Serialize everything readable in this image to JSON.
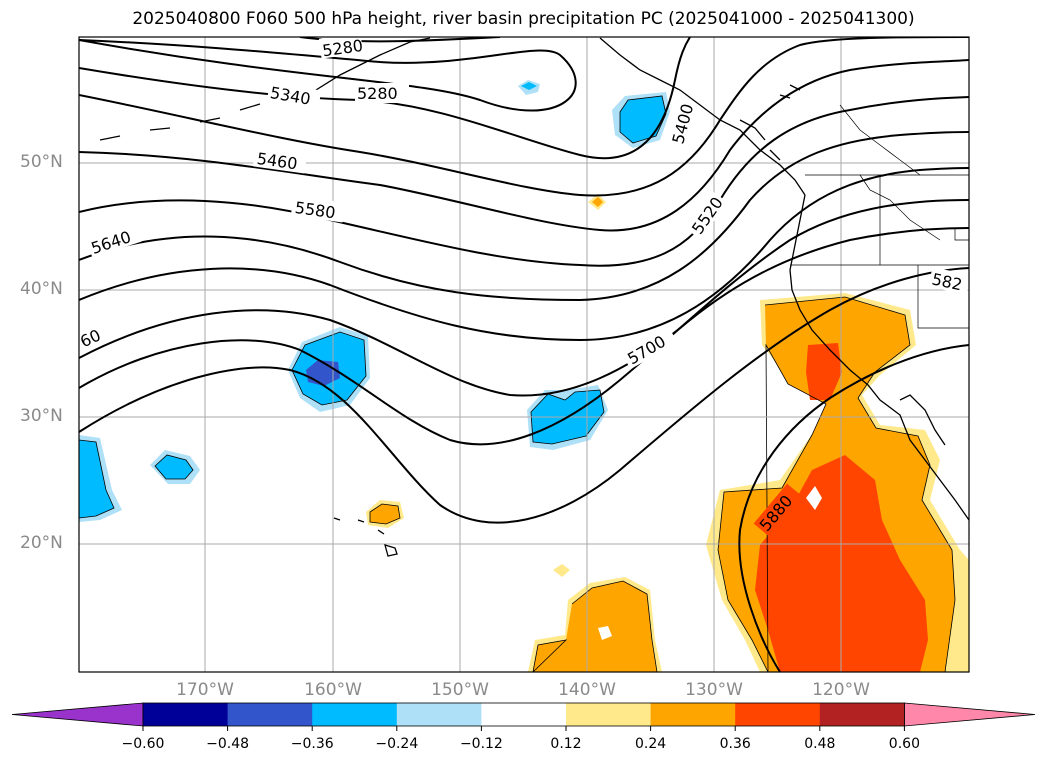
{
  "title": "2025040800 F060 500 hPa height, river basin precipitation PC (2025041000 - 2025041300)",
  "lat_labels": [
    "50°N",
    "40°N",
    "30°N",
    "20°N"
  ],
  "lon_labels": [
    "170°W",
    "160°W",
    "150°W",
    "140°W",
    "130°W",
    "120°W"
  ],
  "contour_labels": [
    "5280",
    "5280",
    "5340",
    "5400",
    "5460",
    "5520",
    "5580",
    "5640",
    "5700",
    "60",
    "5880",
    "582"
  ],
  "colorbar": {
    "ticks": [
      "−0.60",
      "−0.48",
      "−0.36",
      "−0.24",
      "−0.12",
      "0.12",
      "0.24",
      "0.36",
      "0.48",
      "0.60"
    ],
    "colors": [
      "#9933cc",
      "#000099",
      "#3355cc",
      "#00bbff",
      "#aee0f7",
      "#ffffff",
      "#ffe98a",
      "#ffa500",
      "#ff4500",
      "#b22222",
      "#ff88aa"
    ]
  },
  "colors": {
    "grid": "#aaaaaa",
    "contour": "#000000",
    "coast": "#000000"
  }
}
